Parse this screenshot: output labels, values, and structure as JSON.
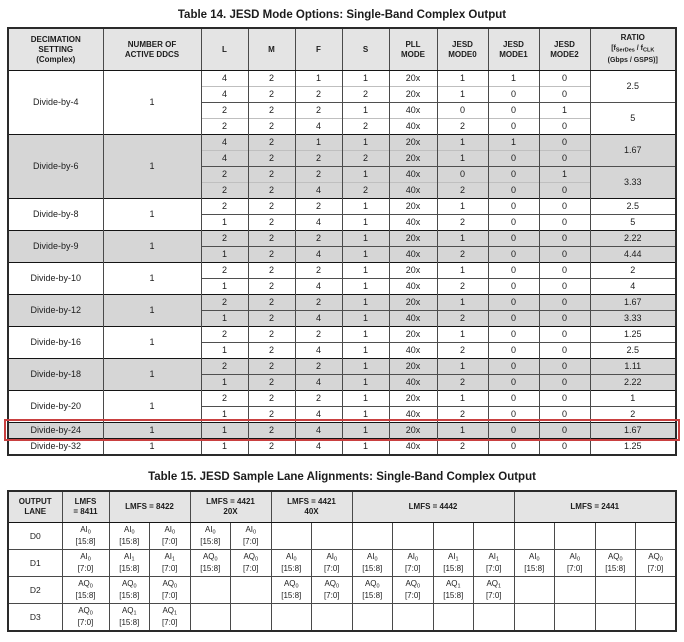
{
  "colors": {
    "header_bg": "#e4e4e4",
    "band_bg": "#d6d6d6",
    "highlight_red": "#c94040"
  },
  "table14": {
    "title": "Table 14. JESD Mode Options: Single-Band Complex Output",
    "columns": [
      {
        "lines": [
          "DECIMATION",
          "SETTING",
          "(Complex)"
        ]
      },
      {
        "lines": [
          "NUMBER OF",
          "ACTIVE DDCS"
        ]
      },
      {
        "lines": [
          "L"
        ]
      },
      {
        "lines": [
          "M"
        ]
      },
      {
        "lines": [
          "F"
        ]
      },
      {
        "lines": [
          "S"
        ]
      },
      {
        "lines": [
          "PLL",
          "MODE"
        ]
      },
      {
        "lines": [
          "JESD",
          "MODE0"
        ]
      },
      {
        "lines": [
          "JESD",
          "MODE1"
        ]
      },
      {
        "lines": [
          "JESD",
          "MODE2"
        ]
      }
    ],
    "ratio_column": {
      "line1": "RATIO",
      "pre": "[f",
      "sub1": "SerDes",
      "mid": " / f",
      "sub2": "CLK",
      "line3": "(Gbps / GSPS)]"
    },
    "groups": [
      {
        "name": "Divide-by-4",
        "ddcs": "1",
        "shaded": false,
        "highlighted": false,
        "rows": [
          [
            "4",
            "2",
            "1",
            "1",
            "20x",
            "1",
            "1",
            "0"
          ],
          [
            "4",
            "2",
            "2",
            "2",
            "20x",
            "1",
            "0",
            "0"
          ],
          [
            "2",
            "2",
            "2",
            "1",
            "40x",
            "0",
            "0",
            "1"
          ],
          [
            "2",
            "2",
            "4",
            "2",
            "40x",
            "2",
            "0",
            "0"
          ]
        ],
        "ratios": [
          {
            "value": "2.5",
            "rows": 2
          },
          {
            "value": "5",
            "rows": 2
          }
        ]
      },
      {
        "name": "Divide-by-6",
        "ddcs": "1",
        "shaded": true,
        "highlighted": false,
        "rows": [
          [
            "4",
            "2",
            "1",
            "1",
            "20x",
            "1",
            "1",
            "0"
          ],
          [
            "4",
            "2",
            "2",
            "2",
            "20x",
            "1",
            "0",
            "0"
          ],
          [
            "2",
            "2",
            "2",
            "1",
            "40x",
            "0",
            "0",
            "1"
          ],
          [
            "2",
            "2",
            "4",
            "2",
            "40x",
            "2",
            "0",
            "0"
          ]
        ],
        "ratios": [
          {
            "value": "1.67",
            "rows": 2
          },
          {
            "value": "3.33",
            "rows": 2
          }
        ]
      },
      {
        "name": "Divide-by-8",
        "ddcs": "1",
        "shaded": false,
        "highlighted": false,
        "rows": [
          [
            "2",
            "2",
            "2",
            "1",
            "20x",
            "1",
            "0",
            "0"
          ],
          [
            "1",
            "2",
            "4",
            "1",
            "40x",
            "2",
            "0",
            "0"
          ]
        ],
        "ratios": [
          {
            "value": "2.5",
            "rows": 1
          },
          {
            "value": "5",
            "rows": 1
          }
        ]
      },
      {
        "name": "Divide-by-9",
        "ddcs": "1",
        "shaded": true,
        "highlighted": false,
        "rows": [
          [
            "2",
            "2",
            "2",
            "1",
            "20x",
            "1",
            "0",
            "0"
          ],
          [
            "1",
            "2",
            "4",
            "1",
            "40x",
            "2",
            "0",
            "0"
          ]
        ],
        "ratios": [
          {
            "value": "2.22",
            "rows": 1
          },
          {
            "value": "4.44",
            "rows": 1
          }
        ]
      },
      {
        "name": "Divide-by-10",
        "ddcs": "1",
        "shaded": false,
        "highlighted": false,
        "rows": [
          [
            "2",
            "2",
            "2",
            "1",
            "20x",
            "1",
            "0",
            "0"
          ],
          [
            "1",
            "2",
            "4",
            "1",
            "40x",
            "2",
            "0",
            "0"
          ]
        ],
        "ratios": [
          {
            "value": "2",
            "rows": 1
          },
          {
            "value": "4",
            "rows": 1
          }
        ]
      },
      {
        "name": "Divide-by-12",
        "ddcs": "1",
        "shaded": true,
        "highlighted": false,
        "rows": [
          [
            "2",
            "2",
            "2",
            "1",
            "20x",
            "1",
            "0",
            "0"
          ],
          [
            "1",
            "2",
            "4",
            "1",
            "40x",
            "2",
            "0",
            "0"
          ]
        ],
        "ratios": [
          {
            "value": "1.67",
            "rows": 1
          },
          {
            "value": "3.33",
            "rows": 1
          }
        ]
      },
      {
        "name": "Divide-by-16",
        "ddcs": "1",
        "shaded": false,
        "highlighted": false,
        "rows": [
          [
            "2",
            "2",
            "2",
            "1",
            "20x",
            "1",
            "0",
            "0"
          ],
          [
            "1",
            "2",
            "4",
            "1",
            "40x",
            "2",
            "0",
            "0"
          ]
        ],
        "ratios": [
          {
            "value": "1.25",
            "rows": 1
          },
          {
            "value": "2.5",
            "rows": 1
          }
        ]
      },
      {
        "name": "Divide-by-18",
        "ddcs": "1",
        "shaded": true,
        "highlighted": false,
        "rows": [
          [
            "2",
            "2",
            "2",
            "1",
            "20x",
            "1",
            "0",
            "0"
          ],
          [
            "1",
            "2",
            "4",
            "1",
            "40x",
            "2",
            "0",
            "0"
          ]
        ],
        "ratios": [
          {
            "value": "1.11",
            "rows": 1
          },
          {
            "value": "2.22",
            "rows": 1
          }
        ]
      },
      {
        "name": "Divide-by-20",
        "ddcs": "1",
        "shaded": false,
        "highlighted": false,
        "rows": [
          [
            "2",
            "2",
            "2",
            "1",
            "20x",
            "1",
            "0",
            "0"
          ],
          [
            "1",
            "2",
            "4",
            "1",
            "40x",
            "2",
            "0",
            "0"
          ]
        ],
        "ratios": [
          {
            "value": "1",
            "rows": 1
          },
          {
            "value": "2",
            "rows": 1
          }
        ]
      },
      {
        "name": "Divide-by-24",
        "ddcs": "1",
        "shaded": true,
        "highlighted": true,
        "rows": [
          [
            "1",
            "2",
            "4",
            "1",
            "20x",
            "1",
            "0",
            "0"
          ]
        ],
        "ratios": [
          {
            "value": "1.67",
            "rows": 1
          }
        ]
      },
      {
        "name": "Divide-by-32",
        "ddcs": "1",
        "shaded": false,
        "highlighted": false,
        "rows": [
          [
            "1",
            "2",
            "4",
            "1",
            "40x",
            "2",
            "0",
            "0"
          ]
        ],
        "ratios": [
          {
            "value": "1.25",
            "rows": 1
          }
        ]
      }
    ]
  },
  "table15": {
    "title": "Table 15. JESD Sample Lane Alignments: Single-Band Complex Output",
    "lane_header_lines": [
      "OUTPUT",
      "LANE"
    ],
    "groups": [
      {
        "lines": [
          "LMFS",
          "= 8411"
        ],
        "cols": 1
      },
      {
        "lines": [
          "LMFS = 8422"
        ],
        "cols": 2
      },
      {
        "lines": [
          "LMFS = 4421",
          "20X"
        ],
        "cols": 2
      },
      {
        "lines": [
          "LMFS = 4421",
          "40X"
        ],
        "cols": 2
      },
      {
        "lines": [
          "LMFS = 4442"
        ],
        "cols": 4
      },
      {
        "lines": [
          "LMFS = 2441"
        ],
        "cols": 4
      }
    ],
    "rows": [
      {
        "lane": "D0",
        "cells": [
          "AI0 [15:8]",
          "AI0 [15:8]",
          "AI0 [7:0]",
          "AI0 [15:8]",
          "AI0 [7:0]",
          "",
          "",
          "",
          "",
          "",
          "",
          "",
          "",
          "",
          ""
        ]
      },
      {
        "lane": "D1",
        "cells": [
          "AI0 [7:0]",
          "AI1 [15:8]",
          "AI1 [7:0]",
          "AQ0 [15:8]",
          "AQ0 [7:0]",
          "AI0 [15:8]",
          "AI0 [7:0]",
          "AI0 [15:8]",
          "AI0 [7:0]",
          "AI1 [15:8]",
          "AI1 [7:0]",
          "AI0 [15:8]",
          "AI0 [7:0]",
          "AQ0 [15:8]",
          "AQ0 [7:0]"
        ]
      },
      {
        "lane": "D2",
        "cells": [
          "AQ0 [15:8]",
          "AQ0 [15:8]",
          "AQ0 [7:0]",
          "",
          "",
          "AQ0 [15:8]",
          "AQ0 [7:0]",
          "AQ0 [15:8]",
          "AQ0 [7:0]",
          "AQ1 [15:8]",
          "AQ1 [7:0]",
          "",
          "",
          "",
          ""
        ]
      },
      {
        "lane": "D3",
        "cells": [
          "AQ0 [7:0]",
          "AQ1 [15:8]",
          "AQ1 [7:0]",
          "",
          "",
          "",
          "",
          "",
          "",
          "",
          "",
          "",
          "",
          "",
          ""
        ]
      }
    ]
  }
}
